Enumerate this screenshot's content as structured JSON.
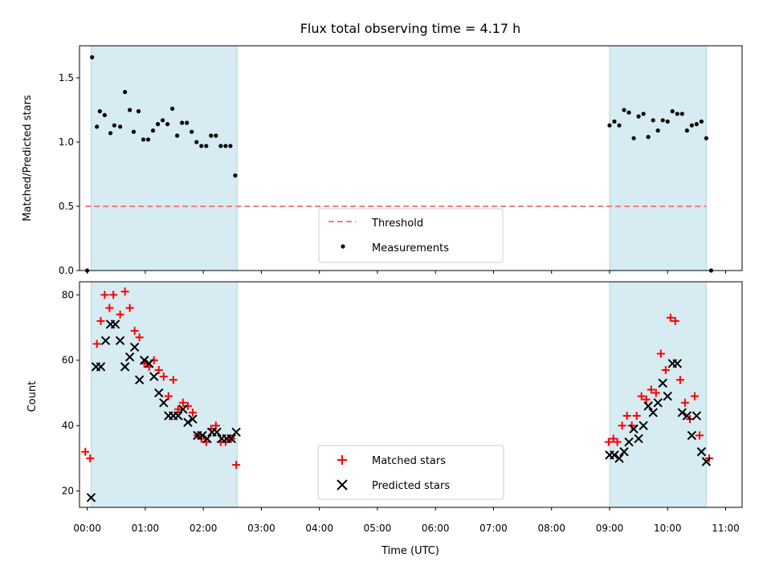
{
  "chart_data": [
    {
      "type": "scatter",
      "title": "Flux total observing time = 4.17 h",
      "xlabel": "",
      "ylabel": "Matched/Predicted stars",
      "ylim": [
        0,
        1.75
      ],
      "yticks": [
        "0.0",
        "0.5",
        "1.0",
        "1.5"
      ],
      "ytick_values": [
        0,
        0.5,
        1.0,
        1.5
      ],
      "xlim": [
        "23:52",
        "11:17"
      ],
      "legend_location": "lower-center",
      "shaded_intervals": [
        [
          "00:04",
          "02:35"
        ],
        [
          "09:00",
          "10:40"
        ]
      ],
      "shade_color": "#add8e6",
      "series": [
        {
          "name": "Threshold",
          "kind": "hline",
          "y": 0.5,
          "x_range": [
            "23:58",
            "10:40"
          ],
          "color": "#f08080"
        },
        {
          "name": "Measurements",
          "kind": "points",
          "color": "#000000",
          "points": [
            [
              "00:00",
              0.0
            ],
            [
              "00:05",
              1.66
            ],
            [
              "00:10",
              1.12
            ],
            [
              "00:13",
              1.24
            ],
            [
              "00:18",
              1.21
            ],
            [
              "00:24",
              1.07
            ],
            [
              "00:28",
              1.13
            ],
            [
              "00:34",
              1.12
            ],
            [
              "00:39",
              1.39
            ],
            [
              "00:44",
              1.25
            ],
            [
              "00:48",
              1.08
            ],
            [
              "00:53",
              1.24
            ],
            [
              "00:58",
              1.02
            ],
            [
              "01:03",
              1.02
            ],
            [
              "01:08",
              1.09
            ],
            [
              "01:13",
              1.14
            ],
            [
              "01:18",
              1.17
            ],
            [
              "01:23",
              1.14
            ],
            [
              "01:28",
              1.26
            ],
            [
              "01:33",
              1.05
            ],
            [
              "01:38",
              1.15
            ],
            [
              "01:43",
              1.15
            ],
            [
              "01:48",
              1.08
            ],
            [
              "01:53",
              1.0
            ],
            [
              "01:58",
              0.97
            ],
            [
              "02:03",
              0.97
            ],
            [
              "02:08",
              1.05
            ],
            [
              "02:13",
              1.05
            ],
            [
              "02:18",
              0.97
            ],
            [
              "02:23",
              0.97
            ],
            [
              "02:28",
              0.97
            ],
            [
              "02:33",
              0.74
            ],
            [
              "09:00",
              1.13
            ],
            [
              "09:05",
              1.16
            ],
            [
              "09:10",
              1.13
            ],
            [
              "09:15",
              1.25
            ],
            [
              "09:20",
              1.23
            ],
            [
              "09:25",
              1.03
            ],
            [
              "09:30",
              1.2
            ],
            [
              "09:35",
              1.22
            ],
            [
              "09:40",
              1.04
            ],
            [
              "09:45",
              1.17
            ],
            [
              "09:50",
              1.09
            ],
            [
              "09:55",
              1.17
            ],
            [
              "10:00",
              1.16
            ],
            [
              "10:05",
              1.24
            ],
            [
              "10:10",
              1.22
            ],
            [
              "10:15",
              1.22
            ],
            [
              "10:20",
              1.09
            ],
            [
              "10:25",
              1.13
            ],
            [
              "10:30",
              1.14
            ],
            [
              "10:35",
              1.16
            ],
            [
              "10:40",
              1.03
            ],
            [
              "10:45",
              0.0
            ]
          ]
        }
      ]
    },
    {
      "type": "scatter",
      "title": "",
      "xlabel": "Time (UTC)",
      "ylabel": "Count",
      "ylim": [
        15,
        84
      ],
      "yticks": [
        "20",
        "40",
        "60",
        "80"
      ],
      "ytick_values": [
        20,
        40,
        60,
        80
      ],
      "xlim": [
        "23:52",
        "11:17"
      ],
      "xticks": [
        "00:00",
        "01:00",
        "02:00",
        "03:00",
        "04:00",
        "05:00",
        "06:00",
        "07:00",
        "08:00",
        "09:00",
        "10:00",
        "11:00"
      ],
      "legend_location": "lower-center",
      "shaded_intervals": [
        [
          "00:04",
          "02:35"
        ],
        [
          "09:00",
          "10:40"
        ]
      ],
      "shade_color": "#add8e6",
      "series": [
        {
          "name": "Matched stars",
          "marker": "plus",
          "color": "#ff0000",
          "points": [
            [
              "23:58",
              32
            ],
            [
              "00:03",
              30
            ],
            [
              "00:10",
              65
            ],
            [
              "00:14",
              72
            ],
            [
              "00:18",
              80
            ],
            [
              "00:23",
              76
            ],
            [
              "00:27",
              80
            ],
            [
              "00:34",
              74
            ],
            [
              "00:39",
              81
            ],
            [
              "00:44",
              76
            ],
            [
              "00:49",
              69
            ],
            [
              "00:54",
              67
            ],
            [
              "00:59",
              59
            ],
            [
              "01:04",
              58
            ],
            [
              "01:09",
              60
            ],
            [
              "01:14",
              57
            ],
            [
              "01:19",
              55
            ],
            [
              "01:24",
              49
            ],
            [
              "01:29",
              54
            ],
            [
              "01:34",
              45
            ],
            [
              "01:39",
              47
            ],
            [
              "01:44",
              46
            ],
            [
              "01:49",
              44
            ],
            [
              "01:54",
              37
            ],
            [
              "01:58",
              36
            ],
            [
              "02:03",
              35
            ],
            [
              "02:08",
              39
            ],
            [
              "02:13",
              40
            ],
            [
              "02:18",
              35
            ],
            [
              "02:23",
              35
            ],
            [
              "02:29",
              36
            ],
            [
              "02:34",
              28
            ],
            [
              "08:59",
              35
            ],
            [
              "09:04",
              36
            ],
            [
              "09:08",
              35
            ],
            [
              "09:13",
              40
            ],
            [
              "09:18",
              43
            ],
            [
              "09:23",
              40
            ],
            [
              "09:28",
              43
            ],
            [
              "09:33",
              49
            ],
            [
              "09:38",
              48
            ],
            [
              "09:43",
              51
            ],
            [
              "09:48",
              50
            ],
            [
              "09:53",
              62
            ],
            [
              "09:58",
              57
            ],
            [
              "10:03",
              73
            ],
            [
              "10:08",
              72
            ],
            [
              "10:13",
              54
            ],
            [
              "10:18",
              47
            ],
            [
              "10:23",
              42
            ],
            [
              "10:28",
              49
            ],
            [
              "10:33",
              37
            ],
            [
              "10:43",
              30
            ]
          ]
        },
        {
          "name": "Predicted stars",
          "marker": "x",
          "color": "#000000",
          "points": [
            [
              "00:04",
              18
            ],
            [
              "00:09",
              58
            ],
            [
              "00:14",
              58
            ],
            [
              "00:19",
              66
            ],
            [
              "00:24",
              71
            ],
            [
              "00:29",
              71
            ],
            [
              "00:34",
              66
            ],
            [
              "00:39",
              58
            ],
            [
              "00:44",
              61
            ],
            [
              "00:49",
              64
            ],
            [
              "00:54",
              54
            ],
            [
              "00:59",
              60
            ],
            [
              "01:04",
              59
            ],
            [
              "01:09",
              55
            ],
            [
              "01:14",
              50
            ],
            [
              "01:19",
              47
            ],
            [
              "01:24",
              43
            ],
            [
              "01:29",
              43
            ],
            [
              "01:34",
              43
            ],
            [
              "01:39",
              45
            ],
            [
              "01:44",
              41
            ],
            [
              "01:49",
              42
            ],
            [
              "01:54",
              37
            ],
            [
              "01:59",
              37
            ],
            [
              "02:04",
              36
            ],
            [
              "02:09",
              38
            ],
            [
              "02:14",
              38
            ],
            [
              "02:19",
              36
            ],
            [
              "02:24",
              36
            ],
            [
              "02:29",
              36
            ],
            [
              "02:34",
              38
            ],
            [
              "09:00",
              31
            ],
            [
              "09:05",
              31
            ],
            [
              "09:10",
              30
            ],
            [
              "09:15",
              32
            ],
            [
              "09:20",
              35
            ],
            [
              "09:25",
              39
            ],
            [
              "09:30",
              36
            ],
            [
              "09:35",
              40
            ],
            [
              "09:40",
              46
            ],
            [
              "09:45",
              44
            ],
            [
              "09:50",
              47
            ],
            [
              "09:55",
              53
            ],
            [
              "10:00",
              49
            ],
            [
              "10:05",
              59
            ],
            [
              "10:10",
              59
            ],
            [
              "10:15",
              44
            ],
            [
              "10:20",
              43
            ],
            [
              "10:25",
              37
            ],
            [
              "10:30",
              43
            ],
            [
              "10:35",
              32
            ],
            [
              "10:40",
              29
            ]
          ]
        }
      ]
    }
  ]
}
